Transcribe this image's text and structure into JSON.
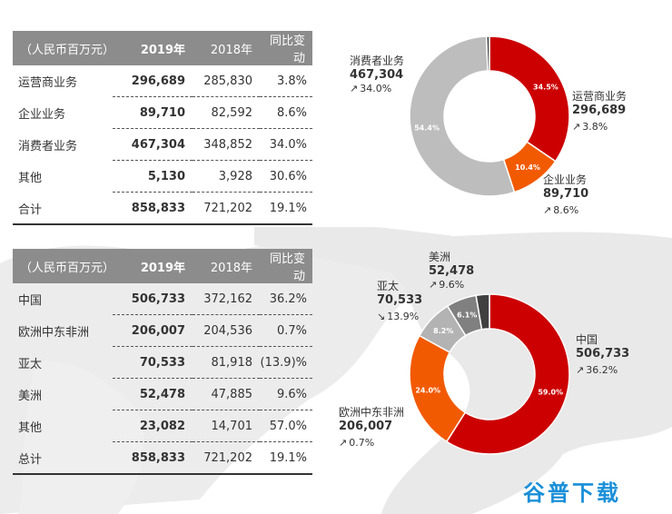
{
  "tables": [
    {
      "headers": [
        "（人民币百万元）",
        "2019年",
        "2018年",
        "同比变动"
      ],
      "rows": [
        [
          "运营商业务",
          "296,689",
          "285,830",
          "3.8%"
        ],
        [
          "企业业务",
          "89,710",
          "82,592",
          "8.6%"
        ],
        [
          "消费者业务",
          "467,304",
          "348,852",
          "34.0%"
        ],
        [
          "其他",
          "5,130",
          "3,928",
          "30.6%"
        ],
        [
          "合计",
          "858,833",
          "721,202",
          "19.1%"
        ]
      ]
    },
    {
      "headers": [
        "（人民币百万元）",
        "2019年",
        "2018年",
        "同比变动"
      ],
      "rows": [
        [
          "中国",
          "506,733",
          "372,162",
          "36.2%"
        ],
        [
          "欧洲中东非洲",
          "206,007",
          "204,536",
          "0.7%"
        ],
        [
          "亚太",
          "70,533",
          "81,918",
          "(13.9)%"
        ],
        [
          "美洲",
          "52,478",
          "47,885",
          "9.6%"
        ],
        [
          "其他",
          "23,082",
          "14,701",
          "57.0%"
        ],
        [
          "总计",
          "858,833",
          "721,202",
          "19.1%"
        ]
      ]
    }
  ],
  "chart_data": [
    {
      "type": "pie",
      "slices": [
        {
          "name": "运营商业务",
          "value": "296,689",
          "share": 34.5,
          "pct_label": "34.5%",
          "growth": "3.8%",
          "direction": "up",
          "color": "#cc0000"
        },
        {
          "name": "企业业务",
          "value": "89,710",
          "share": 10.4,
          "pct_label": "10.4%",
          "growth": "8.6%",
          "direction": "up",
          "color": "#f25a00"
        },
        {
          "name": "消费者业务",
          "value": "467,304",
          "share": 54.4,
          "pct_label": "54.4%",
          "growth": "34.0%",
          "direction": "up",
          "color": "#bdbdbd"
        },
        {
          "share": 0.6,
          "pct_label": "",
          "color": "#444444"
        }
      ]
    },
    {
      "type": "pie",
      "slices": [
        {
          "name": "中国",
          "value": "506,733",
          "share": 59.0,
          "pct_label": "59.0%",
          "growth": "36.2%",
          "direction": "up",
          "color": "#cc0000"
        },
        {
          "name": "欧洲中东非洲",
          "value": "206,007",
          "share": 24.0,
          "pct_label": "24.0%",
          "growth": "0.7%",
          "direction": "up",
          "color": "#f25a00"
        },
        {
          "name": "亚太",
          "value": "70,533",
          "share": 8.2,
          "pct_label": "8.2%",
          "growth": "13.9%",
          "direction": "down",
          "color": "#b3b3b3"
        },
        {
          "name": "美洲",
          "value": "52,478",
          "share": 6.1,
          "pct_label": "6.1%",
          "growth": "9.6%",
          "direction": "up",
          "color": "#808080"
        },
        {
          "share": 2.7,
          "pct_label": "",
          "color": "#404040"
        }
      ]
    }
  ],
  "icons": {
    "up": "↗",
    "down": "↘"
  },
  "watermark": "谷普下载"
}
